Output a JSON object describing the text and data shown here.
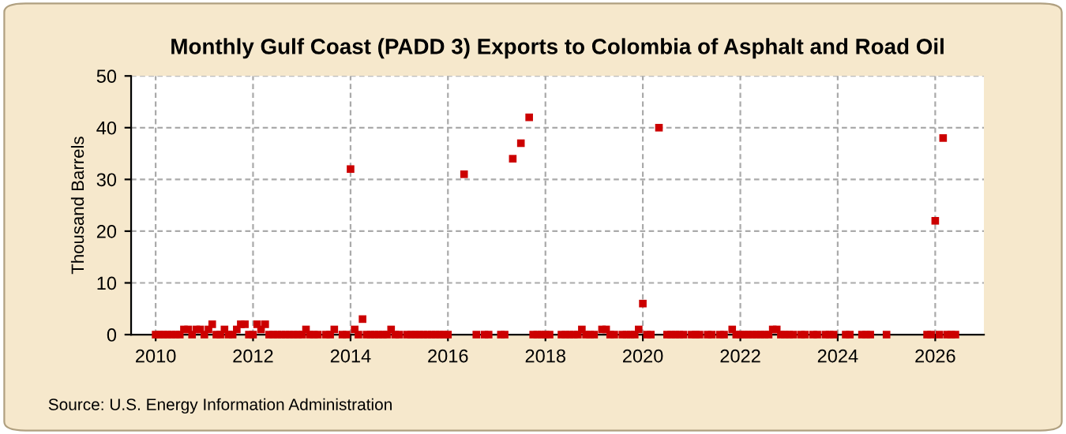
{
  "chart_data": {
    "type": "scatter",
    "title": "Monthly Gulf Coast (PADD 3) Exports to Colombia of Asphalt and Road Oil",
    "ylabel": "Thousand Barrels",
    "annotations": [
      "Source: U.S. Energy Information Administration"
    ],
    "x": [
      "2010-01",
      "2010-02",
      "2010-03",
      "2010-04",
      "2010-05",
      "2010-06",
      "2010-07",
      "2010-08",
      "2010-09",
      "2010-10",
      "2010-11",
      "2010-12",
      "2011-01",
      "2011-02",
      "2011-03",
      "2011-04",
      "2011-05",
      "2011-06",
      "2011-07",
      "2011-08",
      "2011-09",
      "2011-10",
      "2011-11",
      "2011-12",
      "2012-01",
      "2012-02",
      "2012-03",
      "2012-04",
      "2012-05",
      "2012-06",
      "2012-07",
      "2012-08",
      "2012-09",
      "2012-10",
      "2012-11",
      "2012-12",
      "2013-01",
      "2013-02",
      "2013-03",
      "2013-04",
      "2013-05",
      "2013-07",
      "2013-08",
      "2013-09",
      "2013-11",
      "2013-12",
      "2014-01",
      "2014-02",
      "2014-03",
      "2014-04",
      "2014-05",
      "2014-06",
      "2014-07",
      "2014-08",
      "2014-09",
      "2014-10",
      "2014-11",
      "2014-12",
      "2015-01",
      "2015-03",
      "2015-04",
      "2015-05",
      "2015-06",
      "2015-07",
      "2015-08",
      "2015-09",
      "2015-10",
      "2015-11",
      "2015-12",
      "2016-01",
      "2016-05",
      "2016-08",
      "2016-10",
      "2016-11",
      "2017-02",
      "2017-03",
      "2017-05",
      "2017-07",
      "2017-09",
      "2017-10",
      "2017-11",
      "2017-12",
      "2018-01",
      "2018-02",
      "2018-05",
      "2018-06",
      "2018-07",
      "2018-08",
      "2018-09",
      "2018-10",
      "2018-11",
      "2018-12",
      "2019-01",
      "2019-03",
      "2019-04",
      "2019-05",
      "2019-06",
      "2019-08",
      "2019-09",
      "2019-10",
      "2019-11",
      "2019-12",
      "2020-01",
      "2020-02",
      "2020-03",
      "2020-05",
      "2020-07",
      "2020-08",
      "2020-09",
      "2020-10",
      "2020-11",
      "2021-01",
      "2021-02",
      "2021-03",
      "2021-05",
      "2021-06",
      "2021-08",
      "2021-09",
      "2021-11",
      "2021-12",
      "2022-01",
      "2022-02",
      "2022-03",
      "2022-04",
      "2022-05",
      "2022-06",
      "2022-07",
      "2022-08",
      "2022-09",
      "2022-10",
      "2022-11",
      "2022-12",
      "2023-01",
      "2023-02",
      "2023-04",
      "2023-05",
      "2023-07",
      "2023-08",
      "2023-10",
      "2023-11",
      "2023-12",
      "2024-03",
      "2024-04",
      "2024-07",
      "2024-08",
      "2024-09",
      "2025-01",
      "2025-11",
      "2025-12",
      "2026-01",
      "2026-02",
      "2026-03",
      "2026-04",
      "2026-05",
      "2026-06"
    ],
    "series": [
      {
        "color": "#cc0000",
        "values": [
          0,
          0,
          0,
          0,
          0,
          0,
          0,
          1,
          1,
          0,
          1,
          1,
          0,
          1,
          2,
          0,
          0,
          1,
          0,
          0,
          1,
          2,
          2,
          0,
          0,
          2,
          1,
          2,
          0,
          0,
          0,
          0,
          0,
          0,
          0,
          0,
          0,
          1,
          0,
          0,
          0,
          0,
          0,
          1,
          0,
          0,
          32,
          1,
          0,
          3,
          0,
          0,
          0,
          0,
          0,
          0,
          1,
          0,
          0,
          0,
          0,
          0,
          0,
          0,
          0,
          0,
          0,
          0,
          0,
          0,
          31,
          0,
          0,
          0,
          0,
          0,
          34,
          37,
          42,
          0,
          0,
          0,
          0,
          0,
          0,
          0,
          0,
          0,
          0,
          1,
          0,
          0,
          0,
          1,
          1,
          0,
          0,
          0,
          0,
          0,
          0,
          1,
          6,
          0,
          0,
          40,
          0,
          0,
          0,
          0,
          0,
          0,
          0,
          0,
          0,
          0,
          0,
          0,
          1,
          0,
          0,
          0,
          0,
          0,
          0,
          0,
          0,
          0,
          1,
          1,
          0,
          0,
          0,
          0,
          0,
          0,
          0,
          0,
          0,
          0,
          0,
          0,
          0,
          0,
          0,
          0,
          0,
          0,
          0,
          22,
          0,
          38,
          0,
          0,
          0
        ]
      }
    ],
    "xlim": [
      "2009-07",
      "2027-01"
    ],
    "xticks": [
      "2010",
      "2012",
      "2014",
      "2016",
      "2018",
      "2020",
      "2022",
      "2024",
      "2026"
    ],
    "ylim": [
      0,
      50
    ],
    "yticks": [
      0,
      10,
      20,
      30,
      40,
      50
    ],
    "grid": true,
    "marker": "square"
  }
}
